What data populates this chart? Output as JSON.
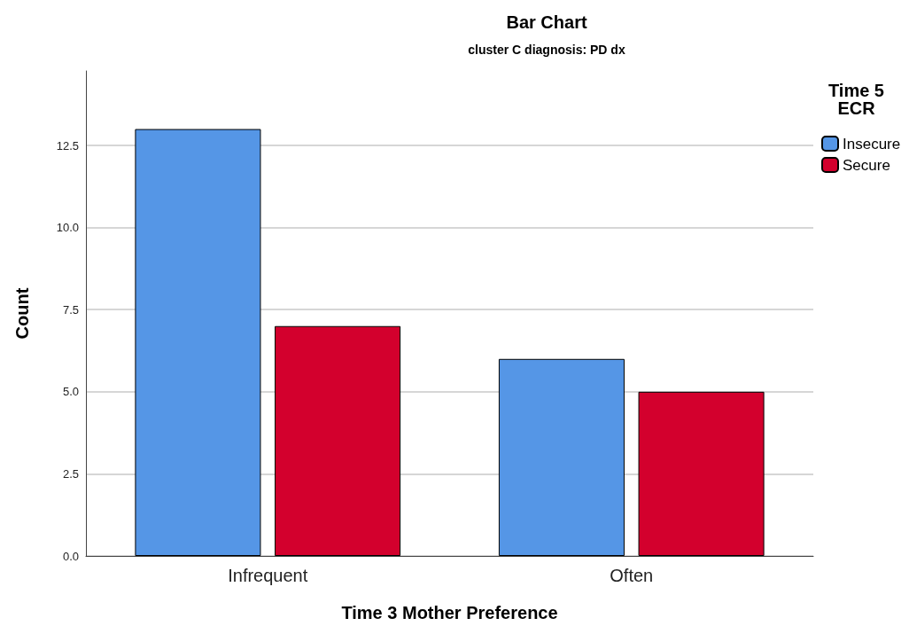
{
  "chart_data": {
    "type": "bar",
    "title": "Bar Chart",
    "subtitle": "cluster C diagnosis: PD dx",
    "xlabel": "Time 3 Mother Preference",
    "ylabel": "Count",
    "legend_title": "Time 5\nECR",
    "categories": [
      "Infrequent",
      "Often"
    ],
    "series": [
      {
        "name": "Insecure",
        "color": "#5596e6",
        "values": [
          13,
          6
        ]
      },
      {
        "name": "Secure",
        "color": "#d3002d",
        "values": [
          7,
          5
        ]
      }
    ],
    "ylim": [
      0,
      14.77
    ],
    "yticks": [
      {
        "value": 0,
        "label": "0.0"
      },
      {
        "value": 2.5,
        "label": "2.5"
      },
      {
        "value": 5,
        "label": "5.0"
      },
      {
        "value": 7.5,
        "label": "7.5"
      },
      {
        "value": 10,
        "label": "10.0"
      },
      {
        "value": 12.5,
        "label": "12.5"
      }
    ],
    "grid": "y",
    "legend": "top right"
  }
}
